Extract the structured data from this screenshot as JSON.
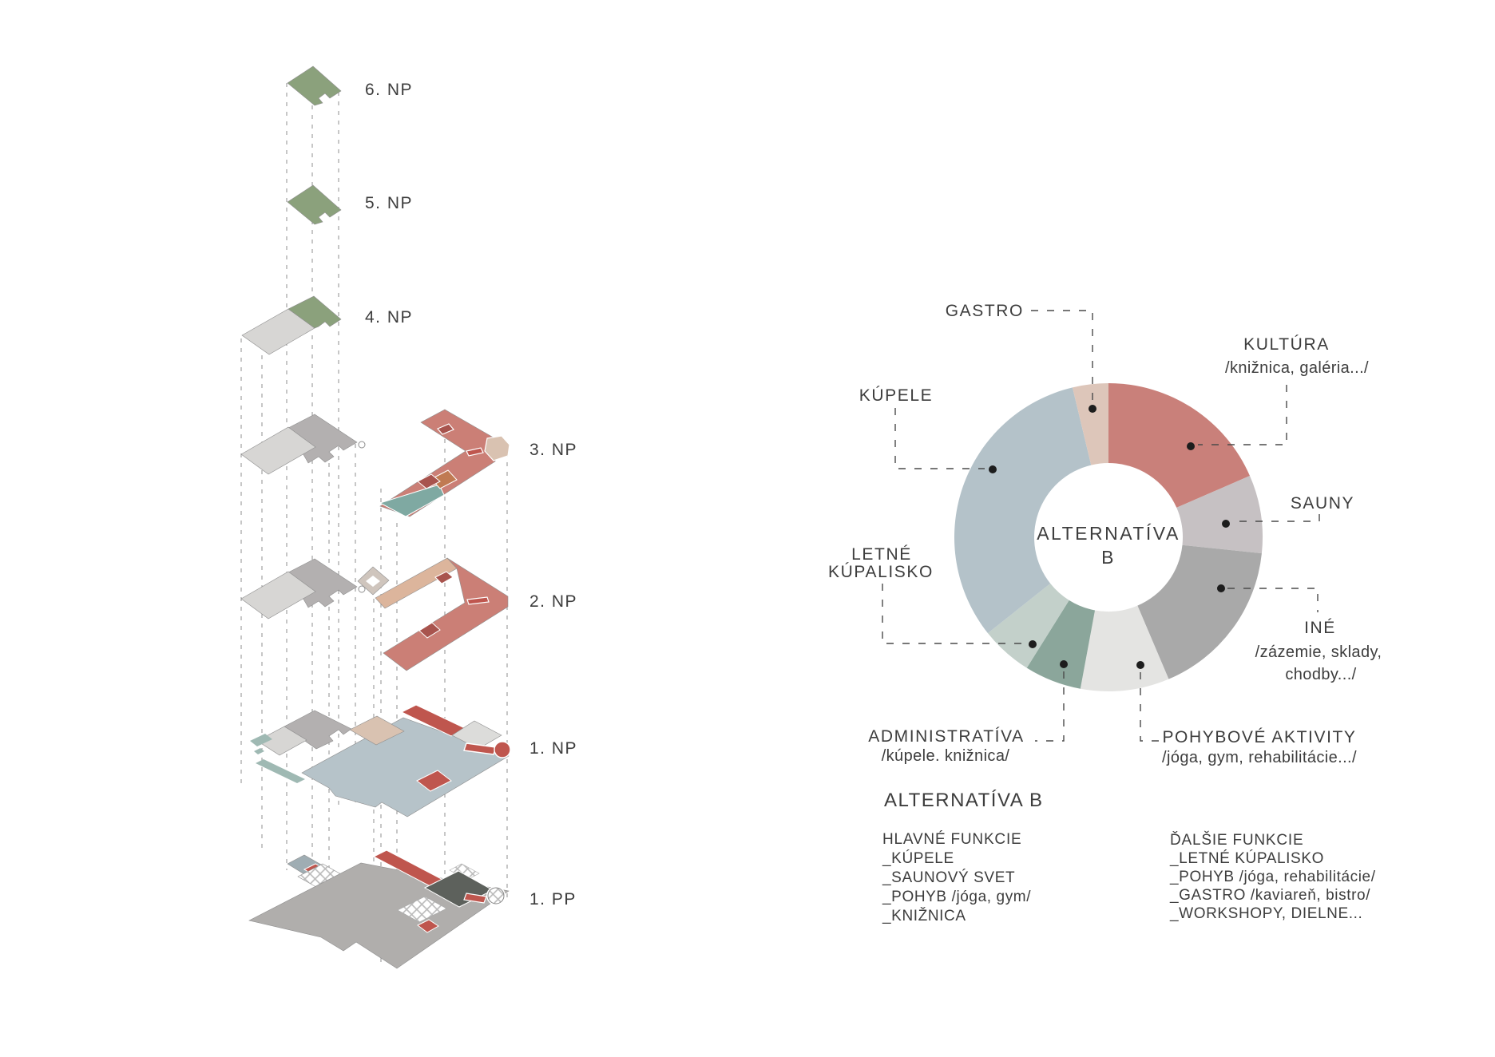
{
  "title": "ALTERNATÍVA B",
  "axon": {
    "floors": [
      {
        "label": "6. NP"
      },
      {
        "label": "5. NP"
      },
      {
        "label": "4. NP"
      },
      {
        "label": "3. NP"
      },
      {
        "label": "2. NP"
      },
      {
        "label": "1. NP"
      },
      {
        "label": "1. PP"
      }
    ]
  },
  "chart_data": {
    "type": "pie",
    "donut": true,
    "title": "ALTERNATÍVA B",
    "center_label": [
      "ALTERNATÍVA",
      "B"
    ],
    "start_angle_deg": 0,
    "direction": "clockwise",
    "inner_radius_ratio": 0.48,
    "legend_position": "callouts-around",
    "segments": [
      {
        "label": "KULTÚRA",
        "sublabel": "/knižnica, galéria.../",
        "callout_lines": [
          "KULTÚRA",
          "/knižnica, galéria.../"
        ],
        "degrees": 66.5,
        "percent": 18.5,
        "color": "#c9807a"
      },
      {
        "label": "SAUNY",
        "sublabel": "",
        "callout_lines": [
          "SAUNY"
        ],
        "degrees": 29.5,
        "percent": 8.2,
        "color": "#c6c1c3"
      },
      {
        "label": "INÉ",
        "sublabel": "/zázemie, sklady, chodby.../",
        "callout_lines": [
          "INÉ",
          "/zázemie, sklady,",
          "chodby.../"
        ],
        "degrees": 61.0,
        "percent": 16.9,
        "color": "#a9a9a9"
      },
      {
        "label": "POHYBOVÉ AKTIVITY",
        "sublabel": "/jóga, gym, rehabilitácie.../",
        "callout_lines": [
          "POHYBOVÉ AKTIVITY",
          "/jóga, gym, rehabilitácie.../"
        ],
        "degrees": 33.5,
        "percent": 9.3,
        "color": "#e4e4e2"
      },
      {
        "label": "ADMINISTRATÍVA",
        "sublabel": "/kúpele. knižnica/",
        "callout_lines": [
          "ADMINISTRATÍVA",
          "/kúpele. knižnica/"
        ],
        "degrees": 21.5,
        "percent": 6.0,
        "color": "#8ba69b"
      },
      {
        "label": "LETNÉ KÚPALISKO",
        "sublabel": "",
        "callout_lines": [
          "LETNÉ",
          "KÚPALISKO"
        ],
        "degrees": 19.5,
        "percent": 5.4,
        "color": "#c3d0ca"
      },
      {
        "label": "KÚPELE",
        "sublabel": "",
        "callout_lines": [
          "KÚPELE"
        ],
        "degrees": 115.0,
        "percent": 31.9,
        "color": "#b4c2c9"
      },
      {
        "label": "GASTRO",
        "sublabel": "",
        "callout_lines": [
          "GASTRO"
        ],
        "degrees": 13.5,
        "percent": 3.8,
        "color": "#ddc6ba"
      }
    ]
  },
  "legend": {
    "heading": "ALTERNATÍVA B",
    "left": {
      "title": "HLAVNÉ FUNKCIE",
      "items": [
        "_KÚPELE",
        "_SAUNOVÝ SVET",
        "_POHYB /jóga, gym/",
        "_KNIŽNICA"
      ]
    },
    "right": {
      "title": "ĎALŠIE FUNKCIE",
      "items": [
        "_LETNÉ KÚPALISKO",
        "_POHYB /jóga, rehabilitácie/",
        "_GASTRO /kaviareň, bistro/",
        "_WORKSHOPY, DIELNE..."
      ]
    }
  },
  "palette": {
    "floor_green": "#8ba17c",
    "floor_salmon": "#cb7f76",
    "accent_red": "#bf564e",
    "accent_dark_red": "#a8544e",
    "accent_orange": "#c07a52",
    "accent_teal": "#7fa9a2",
    "accent_beige": "#d9c2b1",
    "plate_gray": "#b3b0b0",
    "plate_light": "#d7d6d4",
    "plate_blue_gray": "#b6c3c9",
    "text": "#3d3d3d"
  }
}
